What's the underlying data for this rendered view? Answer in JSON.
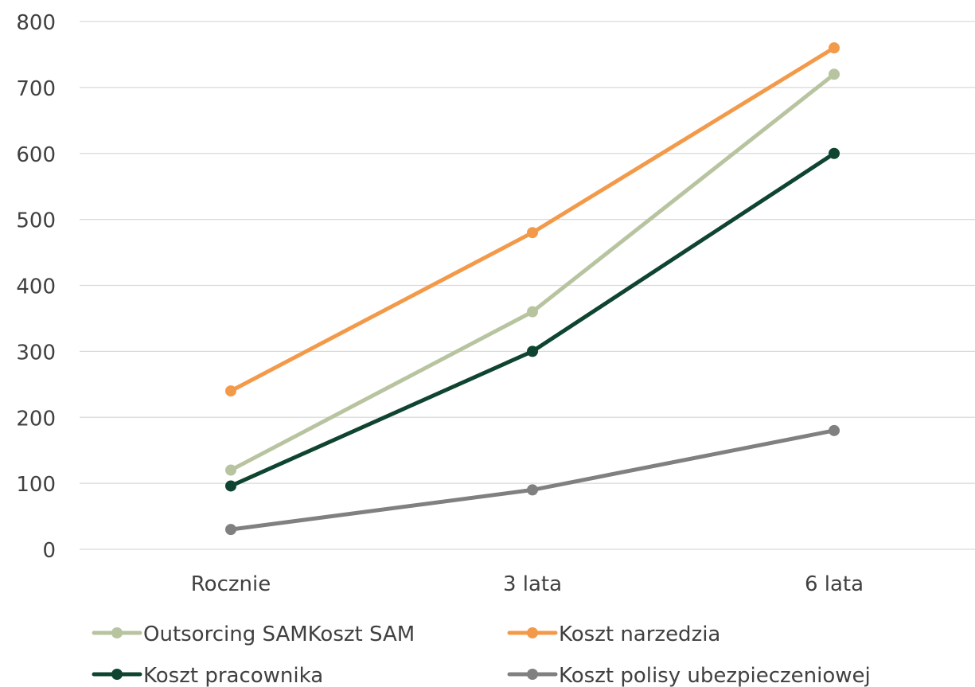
{
  "chart_data": {
    "type": "line",
    "categories": [
      "Rocznie",
      "3 lata",
      "6 lata"
    ],
    "ylim": [
      0,
      800
    ],
    "yticks": [
      0,
      100,
      200,
      300,
      400,
      500,
      600,
      700,
      800
    ],
    "grid": true,
    "legend_position": "bottom",
    "series": [
      {
        "name": "Outsorcing SAMKoszt SAM",
        "values": [
          120,
          360,
          720
        ],
        "color": "#B8C4A0"
      },
      {
        "name": "Koszt narzedzia",
        "values": [
          240,
          480,
          760
        ],
        "color": "#F39A4A"
      },
      {
        "name": "Koszt pracownika",
        "values": [
          96,
          300,
          600
        ],
        "color": "#0F4530"
      },
      {
        "name": "Koszt polisy ubezpieczeniowej",
        "values": [
          30,
          90,
          180
        ],
        "color": "#808080"
      }
    ]
  }
}
